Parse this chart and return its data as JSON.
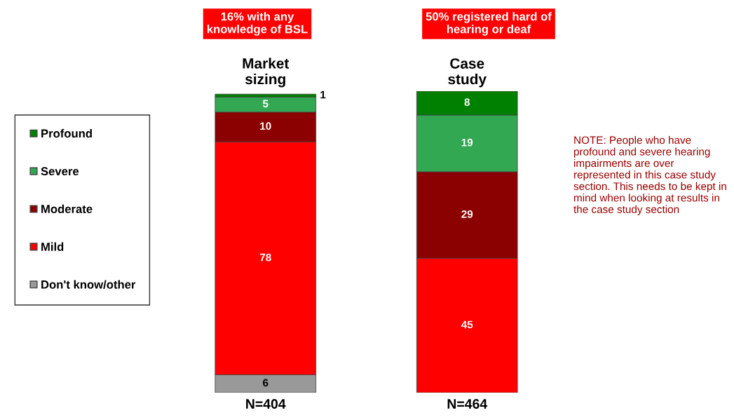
{
  "chart_data": {
    "type": "bar",
    "stacked": true,
    "data_labels": true,
    "legend": "left",
    "grid": false,
    "categories": [
      "Market sizing",
      "Case study"
    ],
    "series": [
      {
        "name": "Don't know/other",
        "color": "#999999",
        "values": [
          6,
          null
        ]
      },
      {
        "name": "Mild",
        "color": "#ff0000",
        "values": [
          78,
          45
        ]
      },
      {
        "name": "Moderate",
        "color": "#8b0000",
        "values": [
          10,
          29
        ]
      },
      {
        "name": "Severe",
        "color": "#33a853",
        "values": [
          5,
          19
        ]
      },
      {
        "name": "Profound",
        "color": "#008000",
        "values": [
          1,
          8
        ]
      }
    ],
    "annotations": [
      "16% with any knowledge of BSL",
      "50% registered hard of hearing or deaf",
      "N=404",
      "N=464",
      "NOTE: People who have profound and severe hearing impairments are over represented in this case study section. This needs to be kept in mind when looking at results in the case study section"
    ]
  }
}
